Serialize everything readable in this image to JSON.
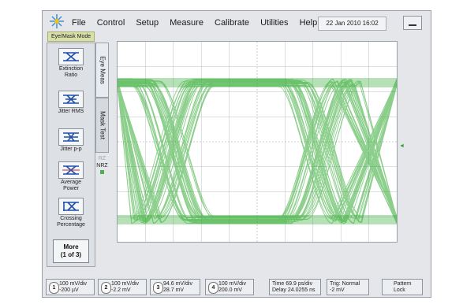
{
  "menu": {
    "items": [
      "File",
      "Control",
      "Setup",
      "Measure",
      "Calibrate",
      "Utilities",
      "Help"
    ],
    "datetime": "22 Jan 2010  16:02"
  },
  "mode_label": "Eye/Mask Mode",
  "tabs": {
    "eye_meas": "Eye Meas",
    "mask_test": "Mask Test"
  },
  "signal_format": {
    "rz": "RZ",
    "nrz": "NRZ"
  },
  "measurements": [
    {
      "label": "Extinction Ratio",
      "icon": "extinction-ratio-icon"
    },
    {
      "label": "Jitter RMS",
      "icon": "jitter-rms-icon"
    },
    {
      "label": "Jitter p-p",
      "icon": "jitter-pp-icon"
    },
    {
      "label": "Average Power",
      "icon": "average-power-icon"
    },
    {
      "label": "Crossing Percentage",
      "icon": "crossing-percentage-icon"
    }
  ],
  "more_button": {
    "line1": "More",
    "line2": "(1 of 3)"
  },
  "channels": [
    {
      "num": "1",
      "scale": "100 mV/div",
      "offset": "-200 µV"
    },
    {
      "num": "2",
      "scale": "100 mV/div",
      "offset": "-2.2 mV"
    },
    {
      "num": "3",
      "scale": "94.6 mV/div",
      "offset": "28.7 mV"
    },
    {
      "num": "4",
      "scale": "100 mV/div",
      "offset": "200.0 mV"
    }
  ],
  "timebase": {
    "line1": "Time 69.9 ps/div",
    "line2": "Delay 24.0255 ns"
  },
  "trigger": {
    "line1": "Trig: Normal",
    "line2": "-2 mV"
  },
  "pattern_lock": {
    "line1": "Pattern",
    "line2": "Lock"
  },
  "colors": {
    "trace": "#2fa82f",
    "grid": "#b8bcc2"
  }
}
